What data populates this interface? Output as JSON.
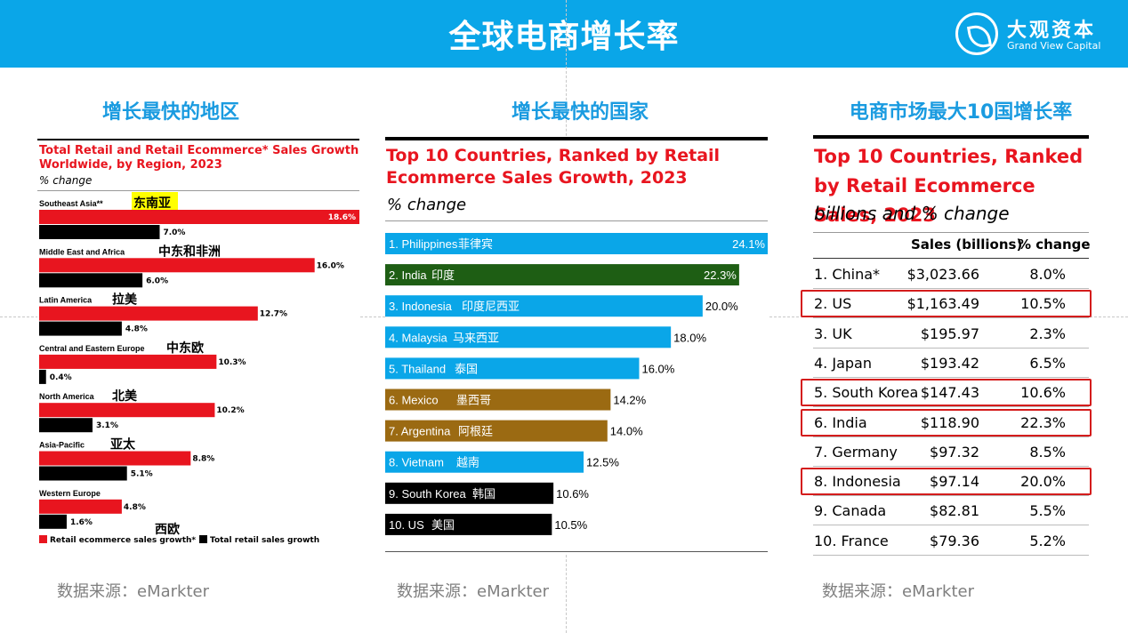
{
  "header": {
    "title": "全球电商增长率",
    "logo_cn": "大观资本",
    "logo_en": "Grand View Capital"
  },
  "sections": [
    {
      "title": "增长最快的地区",
      "source": "数据来源：eMarkter"
    },
    {
      "title": "增长最快的国家",
      "source": "数据来源：eMarkter"
    },
    {
      "title": "电商市场最大10国增长率",
      "source": "数据来源：eMarkter"
    }
  ],
  "colors": {
    "header_bg": "#0aa6e8",
    "accent_red": "#e8151f",
    "blue": "#0aa6e8",
    "green": "#1e5e14",
    "brown": "#9b6a12",
    "black": "#000000",
    "highlight": "#ffff00",
    "box_red": "#d41c1c"
  },
  "chart_data": [
    {
      "type": "bar",
      "title": "Total Retail and Retail Ecommerce* Sales Growth Worldwide, by Region, 2023",
      "subtitle": "% change",
      "categories": [
        "Southeast Asia**",
        "Middle East and Africa",
        "Latin America",
        "Central and Eastern Europe",
        "North America",
        "Asia-Pacific",
        "Western Europe"
      ],
      "category_cn": [
        "东南亚",
        "中东和非洲",
        "拉美",
        "中东欧",
        "北美",
        "亚太",
        "西欧"
      ],
      "series": [
        {
          "name": "Retail ecommerce sales growth*",
          "color": "#e8151f",
          "values": [
            18.6,
            16.0,
            12.7,
            10.3,
            10.2,
            8.8,
            4.8
          ],
          "labels": [
            "18.6%",
            "16.0%",
            "12.7%",
            "10.3%",
            "10.2%",
            "8.8%",
            "4.8%"
          ]
        },
        {
          "name": "Total retail sales growth",
          "color": "#000000",
          "values": [
            7.0,
            6.0,
            4.8,
            0.4,
            3.1,
            5.1,
            1.6
          ],
          "labels": [
            "7.0%",
            "6.0%",
            "4.8%",
            "0.4%",
            "3.1%",
            "5.1%",
            "1.6%"
          ]
        }
      ],
      "xlim": [
        0,
        18.6
      ]
    },
    {
      "type": "bar",
      "title": "Top 10 Countries, Ranked by Retail Ecommerce Sales Growth, 2023",
      "subtitle": "% change",
      "categories": [
        "1. Philippines",
        "2. India",
        "3. Indonesia",
        "4. Malaysia",
        "5. Thailand",
        "6. Mexico",
        "7. Argentina",
        "8. Vietnam",
        "9. South Korea",
        "10. US"
      ],
      "category_cn": [
        "菲律宾",
        "印度",
        "印度尼西亚",
        "马来西亚",
        "泰国",
        "墨西哥",
        "阿根廷",
        "越南",
        "韩国",
        "美国"
      ],
      "values": [
        24.1,
        22.3,
        20.0,
        18.0,
        16.0,
        14.2,
        14.0,
        12.5,
        10.6,
        10.5
      ],
      "labels": [
        "24.1%",
        "22.3%",
        "20.0%",
        "18.0%",
        "16.0%",
        "14.2%",
        "14.0%",
        "12.5%",
        "10.6%",
        "10.5%"
      ],
      "colors": [
        "#0aa6e8",
        "#1e5e14",
        "#0aa6e8",
        "#0aa6e8",
        "#0aa6e8",
        "#9b6a12",
        "#9b6a12",
        "#0aa6e8",
        "#000000",
        "#000000"
      ],
      "xlim": [
        0,
        24.1
      ]
    },
    {
      "type": "table",
      "title": "Top 10 Countries, Ranked by Retail Ecommerce Sales, 2023",
      "subtitle": "billions and % change",
      "columns": [
        "",
        "Sales (billions)",
        "% change"
      ],
      "rows": [
        [
          "1. China*",
          "$3,023.66",
          "8.0%"
        ],
        [
          "2. US",
          "$1,163.49",
          "10.5%"
        ],
        [
          "3. UK",
          "$195.97",
          "2.3%"
        ],
        [
          "4. Japan",
          "$193.42",
          "6.5%"
        ],
        [
          "5. South Korea",
          "$147.43",
          "10.6%"
        ],
        [
          "6. India",
          "$118.90",
          "22.3%"
        ],
        [
          "7. Germany",
          "$97.32",
          "8.5%"
        ],
        [
          "8. Indonesia",
          "$97.14",
          "20.0%"
        ],
        [
          "9. Canada",
          "$82.81",
          "5.5%"
        ],
        [
          "10. France",
          "$79.36",
          "5.2%"
        ]
      ],
      "highlighted_rows": [
        1,
        4,
        5,
        7
      ]
    }
  ]
}
